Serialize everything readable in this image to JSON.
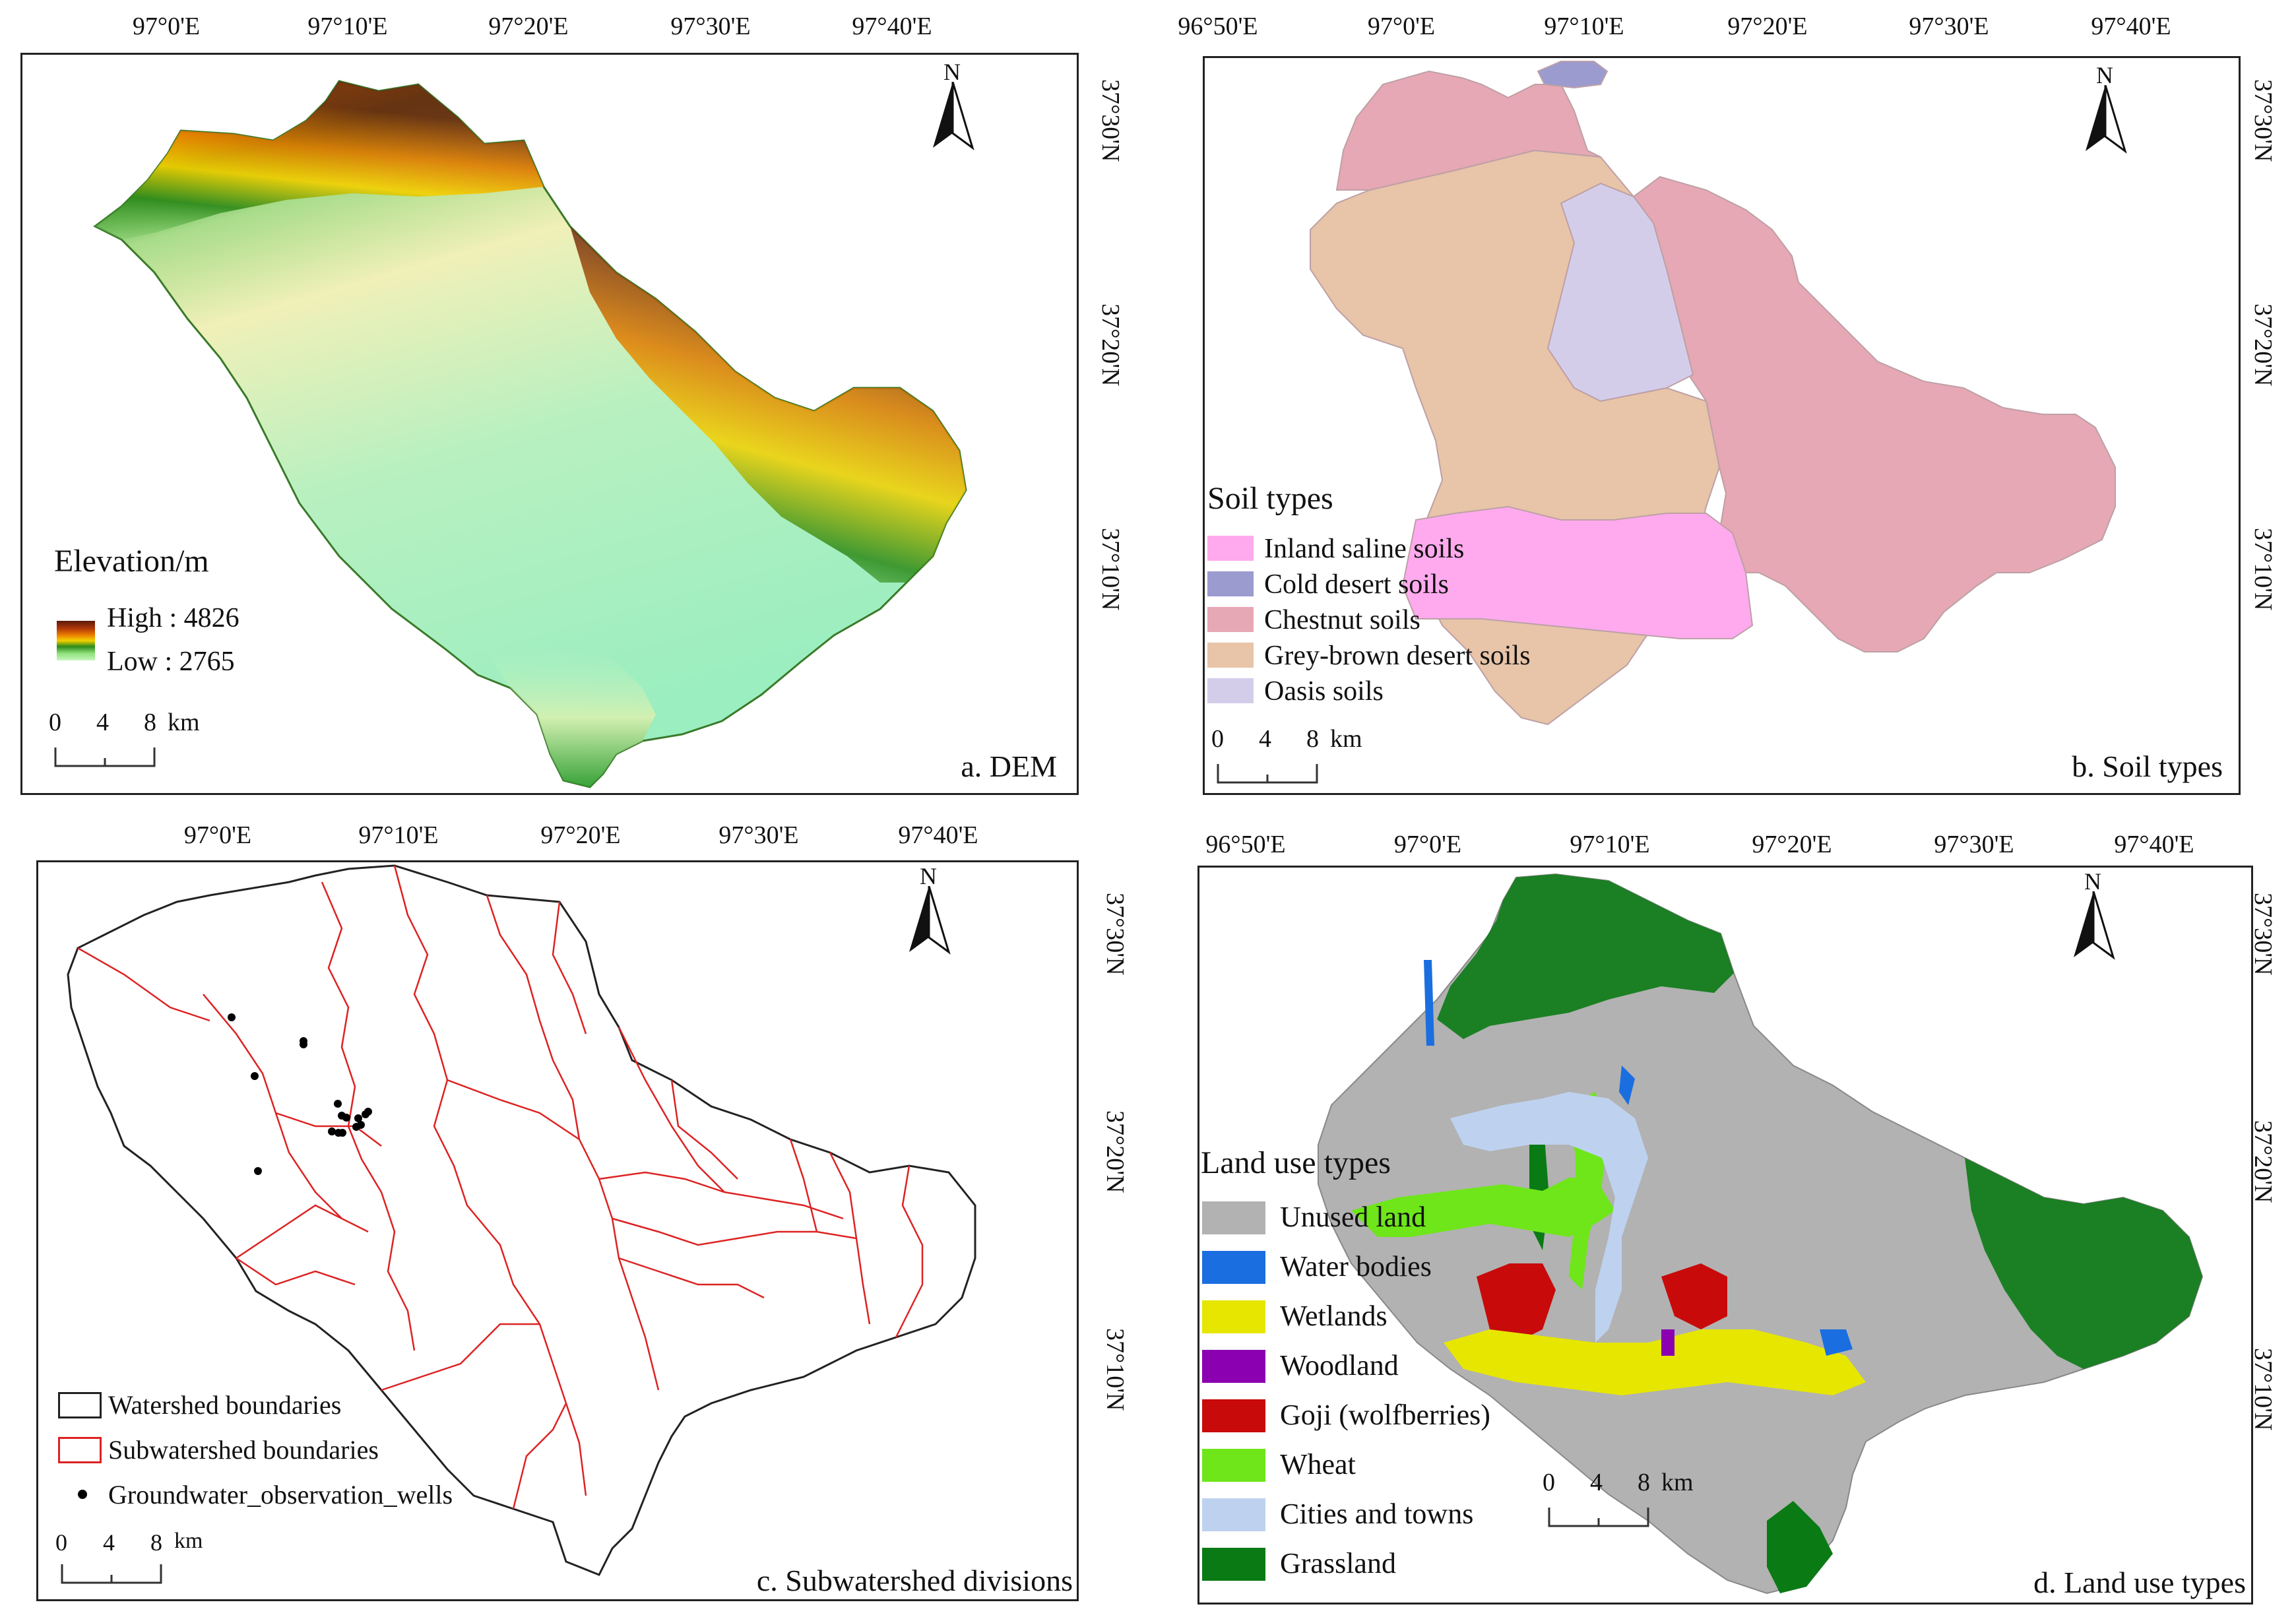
{
  "panel_a": {
    "caption": "a. DEM",
    "lon_labels": [
      "97°0'E",
      "97°10'E",
      "97°20'E",
      "97°30'E",
      "97°40'E"
    ],
    "lat_labels": [
      "37°30'N",
      "37°20'N",
      "37°10'N"
    ],
    "north": "N",
    "legend_title": "Elevation/m",
    "high": "High : 4826",
    "low": "Low : 2765",
    "scale_labels": [
      "0",
      "4",
      "8"
    ],
    "scale_unit": "km",
    "ramp_colors": [
      "#5a1a0a",
      "#b33a0a",
      "#e87a00",
      "#f4d000",
      "#2d8a1a",
      "#8ee07a",
      "#c7f7c0"
    ]
  },
  "panel_b": {
    "caption": "b. Soil types",
    "lon_labels": [
      "96°50'E",
      "97°0'E",
      "97°10'E",
      "97°20'E",
      "97°30'E",
      "97°40'E"
    ],
    "lat_labels": [
      "37°30'N",
      "37°20'N",
      "37°10'N"
    ],
    "north": "N",
    "legend_title": "Soil types",
    "items": [
      {
        "label": "Inland saline soils",
        "color": "#ffaaee"
      },
      {
        "label": "Cold desert soils",
        "color": "#9b9bd0"
      },
      {
        "label": "Chestnut soils",
        "color": "#e6a8b4"
      },
      {
        "label": "Grey-brown desert soils",
        "color": "#e8c4a8"
      },
      {
        "label": "Oasis soils",
        "color": "#d4cdea"
      }
    ],
    "scale_labels": [
      "0",
      "4",
      "8"
    ],
    "scale_unit": "km"
  },
  "panel_c": {
    "caption": "c. Subwatershed divisions",
    "lon_labels": [
      "97°0'E",
      "97°10'E",
      "97°20'E",
      "97°30'E",
      "97°40'E"
    ],
    "lat_labels": [
      "37°30'N",
      "37°20'N",
      "37°10'N"
    ],
    "north": "N",
    "legend": [
      {
        "label": "Watershed boundaries",
        "kind": "box",
        "color": "#222222"
      },
      {
        "label": "Subwatershed boundaries",
        "kind": "box",
        "color": "#dd2222"
      },
      {
        "label": "Groundwater_observation_wells",
        "kind": "dot",
        "color": "#000000"
      }
    ],
    "scale_labels": [
      "0",
      "4",
      "8"
    ],
    "scale_unit": "km"
  },
  "panel_d": {
    "caption": "d. Land use types",
    "lon_labels": [
      "96°50'E",
      "97°0'E",
      "97°10'E",
      "97°20'E",
      "97°30'E",
      "97°40'E"
    ],
    "lat_labels": [
      "37°30'N",
      "37°20'N",
      "37°10'N"
    ],
    "north": "N",
    "legend_title": "Land use types",
    "items": [
      {
        "label": "Unused land",
        "color": "#b2b2b2"
      },
      {
        "label": "Water bodies",
        "color": "#1a6ee0"
      },
      {
        "label": "Wetlands",
        "color": "#e6e600"
      },
      {
        "label": "Woodland",
        "color": "#8b00b0"
      },
      {
        "label": "Goji (wolfberries)",
        "color": "#c80a0a"
      },
      {
        "label": "Wheat",
        "color": "#6ee61a"
      },
      {
        "label": "Cities and towns",
        "color": "#bed2f0"
      },
      {
        "label": "Grassland",
        "color": "#0a7a14"
      }
    ],
    "scale_labels": [
      "0",
      "4",
      "8"
    ],
    "scale_unit": "km"
  }
}
